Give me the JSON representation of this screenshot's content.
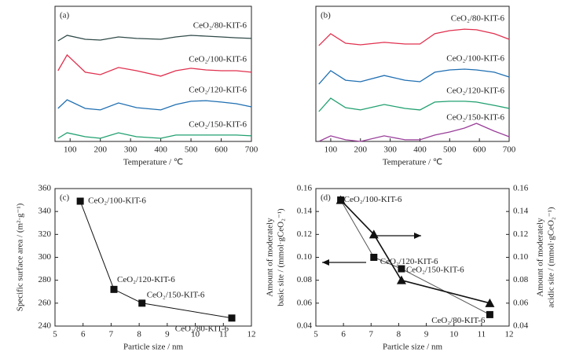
{
  "chart_data": [
    {
      "type": "line",
      "label": "(a)",
      "xlabel": "Temperature / ℃",
      "xlim": [
        50,
        700
      ],
      "xticks": [
        100,
        200,
        300,
        400,
        500,
        600,
        700
      ],
      "ylim": [
        0,
        100
      ],
      "x": [
        60,
        90,
        150,
        200,
        260,
        320,
        400,
        450,
        500,
        550,
        600,
        650,
        700
      ],
      "series": [
        {
          "name": "CeO₂/80-KIT-6",
          "color": "#2f4a48",
          "values": [
            74.4,
            78.5,
            75.6,
            75.0,
            77.3,
            76.2,
            75.6,
            77.3,
            78.5,
            77.9,
            77.3,
            76.7,
            76.2
          ]
        },
        {
          "name": "CeO₂/100-KIT-6",
          "color": "#e0304e",
          "values": [
            52.3,
            64.0,
            51.2,
            49.4,
            54.7,
            52.3,
            48.3,
            52.3,
            54.1,
            52.9,
            52.3,
            52.3,
            51.2
          ]
        },
        {
          "name": "CeO₂/120-KIT-6",
          "color": "#1f6fb2",
          "values": [
            24.4,
            30.8,
            24.4,
            23.3,
            28.5,
            25.0,
            23.3,
            27.3,
            29.7,
            30.2,
            29.1,
            27.9,
            25.6
          ]
        },
        {
          "name": "CeO₂/150-KIT-6",
          "color": "#20a070",
          "values": [
            2.3,
            6.4,
            3.5,
            2.3,
            6.4,
            3.5,
            2.3,
            4.7,
            4.7,
            4.7,
            4.7,
            4.7,
            4.1
          ]
        }
      ]
    },
    {
      "type": "line",
      "label": "(b)",
      "xlabel": "Temperature / ℃",
      "xlim": [
        50,
        700
      ],
      "xticks": [
        100,
        200,
        300,
        400,
        500,
        600,
        700
      ],
      "ylim": [
        0,
        100
      ],
      "x": [
        60,
        100,
        150,
        200,
        280,
        350,
        400,
        450,
        500,
        550,
        590,
        650,
        700
      ],
      "series": [
        {
          "name": "CeO₂/80-KIT-6",
          "color": "#e0304e",
          "values": [
            70.9,
            79.7,
            72.7,
            71.5,
            73.3,
            72.1,
            72.1,
            79.7,
            82.0,
            83.1,
            82.6,
            79.7,
            75.6
          ]
        },
        {
          "name": "CeO₂/100-KIT-6",
          "color": "#1f6fb2",
          "values": [
            42.4,
            52.3,
            45.3,
            44.2,
            48.8,
            45.3,
            44.2,
            51.2,
            52.9,
            53.5,
            52.9,
            51.2,
            47.7
          ]
        },
        {
          "name": "CeO₂/120-KIT-6",
          "color": "#20a070",
          "values": [
            22.1,
            32.0,
            25.0,
            23.3,
            27.3,
            24.4,
            23.3,
            29.1,
            29.7,
            29.7,
            29.1,
            26.7,
            24.4
          ]
        },
        {
          "name": "CeO₂/150-KIT-6",
          "color": "#9a3f9a",
          "values": [
            0,
            4.1,
            1.2,
            0,
            4.1,
            1.2,
            1.2,
            4.7,
            7.0,
            9.9,
            13.4,
            7.6,
            3.5
          ]
        }
      ]
    },
    {
      "type": "scatter",
      "label": "(c)",
      "xlabel": "Particle size / nm",
      "ylabel": [
        "Specific surface area / (m²·g⁻¹)"
      ],
      "xlim": [
        5,
        12
      ],
      "xticks": [
        5,
        6,
        7,
        8,
        9,
        10,
        11,
        12
      ],
      "ylim": [
        240,
        360
      ],
      "yticks": [
        240,
        260,
        280,
        300,
        320,
        340,
        360
      ],
      "x": [
        5.9,
        7.1,
        8.1,
        11.3
      ],
      "point_labels": [
        "CeO₂/100-KIT-6",
        "CeO₂/120-KIT-6",
        "CeO₂/150-KIT-6",
        "CeO₂/80-KIT-6"
      ],
      "series": [
        {
          "color": "#111",
          "marker": "square",
          "values": [
            349,
            272,
            260,
            247
          ]
        }
      ]
    },
    {
      "type": "scatter",
      "label": "(d)",
      "xlabel": "Particle size / nm",
      "ylabel": [
        "Amount of moderately",
        "basic site / (mmol·gCeO₂⁻¹)"
      ],
      "y2label": [
        "Amount of moderately",
        "acidic site / (mmol·gCeO₂⁻¹)"
      ],
      "xlim": [
        5,
        12
      ],
      "xticks": [
        5,
        6,
        7,
        8,
        9,
        10,
        11,
        12
      ],
      "ylim": [
        0.04,
        0.16
      ],
      "yticks": [
        0.04,
        0.06,
        0.08,
        {
          "value": 0.1,
          "label": "0.10"
        },
        0.12,
        0.14,
        0.16
      ],
      "y2lim": [
        0.04,
        0.16
      ],
      "y2ticks": [
        0.04,
        0.06,
        0.08,
        {
          "value": 0.1,
          "label": "0.10"
        },
        0.12,
        0.14,
        0.16
      ],
      "x": [
        5.9,
        7.1,
        8.1,
        11.3
      ],
      "point_labels": [
        "CeO₂/100-KIT-6",
        "CeO₂/120-KIT-6",
        "CeO₂/150-KIT-6",
        "CeO₂/80-KIT-6"
      ],
      "series": [
        {
          "color": "#555",
          "marker": "square",
          "values": [
            0.15,
            0.1,
            0.09,
            0.05
          ]
        },
        {
          "color": "#111",
          "marker": "triangle",
          "axis": "y2",
          "values": [
            0.15,
            0.12,
            0.08,
            0.06
          ]
        }
      ]
    }
  ]
}
